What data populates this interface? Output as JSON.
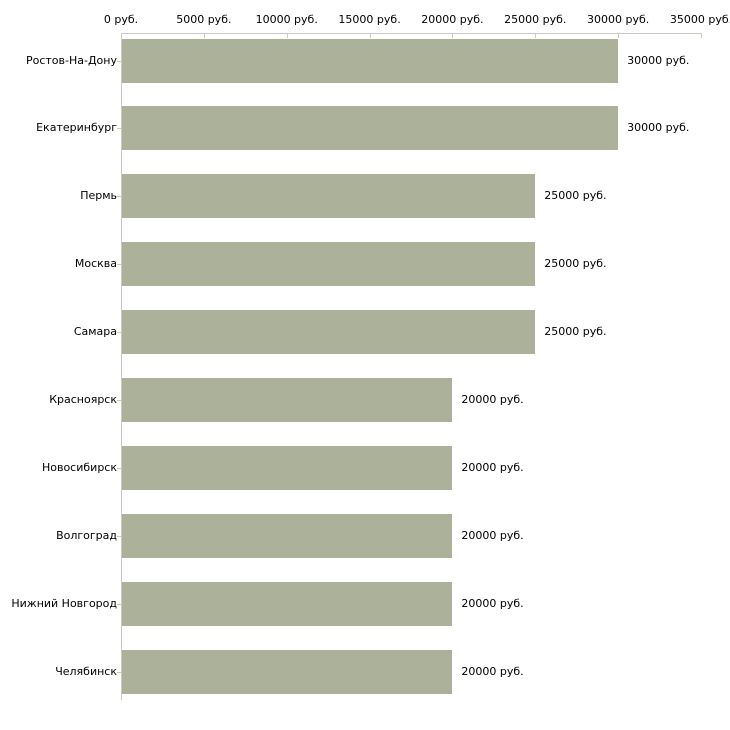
{
  "chart_data": {
    "type": "bar",
    "orientation": "horizontal",
    "title": "",
    "xlabel": "",
    "ylabel": "",
    "unit": "руб.",
    "categories": [
      "Ростов-На-Дону",
      "Екатеринбург",
      "Пермь",
      "Москва",
      "Самара",
      "Красноярск",
      "Новосибирск",
      "Волгоград",
      "Нижний Новгород",
      "Челябинск"
    ],
    "values": [
      30000,
      30000,
      25000,
      25000,
      25000,
      20000,
      20000,
      20000,
      20000,
      20000
    ],
    "value_labels": [
      "30000 руб.",
      "30000 руб.",
      "25000 руб.",
      "25000 руб.",
      "25000 руб.",
      "20000 руб.",
      "20000 руб.",
      "20000 руб.",
      "20000 руб.",
      "20000 руб."
    ],
    "x_ticks": [
      0,
      5000,
      10000,
      15000,
      20000,
      25000,
      30000,
      35000
    ],
    "x_tick_labels": [
      "0 руб.",
      "5000 руб.",
      "10000 руб.",
      "15000 руб.",
      "20000 руб.",
      "25000 руб.",
      "30000 руб.",
      "35000 руб."
    ],
    "xlim": [
      0,
      35000
    ],
    "grid": false,
    "legend": false,
    "colors": {
      "bar": "#acb299",
      "axis_line": "#c9c9c5",
      "tick": "#cdd0a6",
      "text": "#000000",
      "background": "#ffffff"
    }
  }
}
